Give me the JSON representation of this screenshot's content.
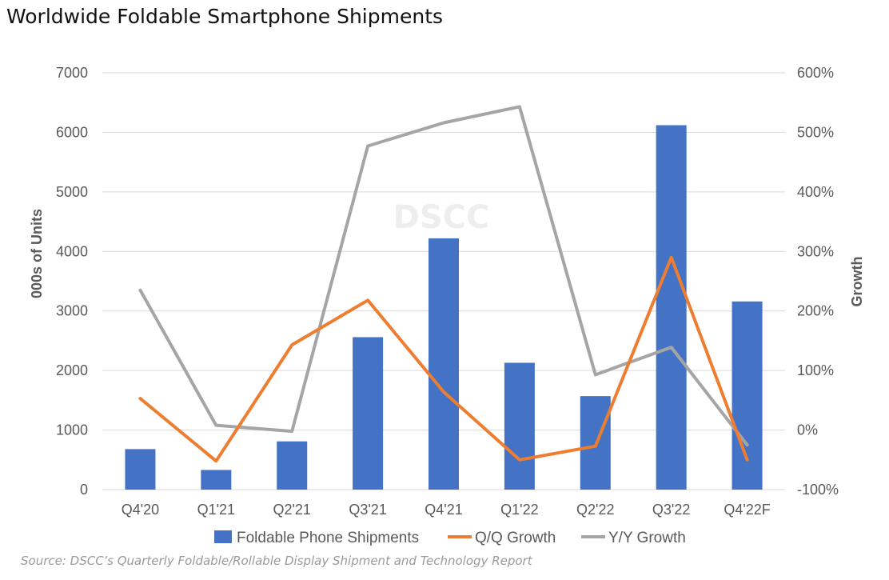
{
  "title": "Worldwide Foldable Smartphone Shipments",
  "source": "Source: DSCC’s Quarterly Foldable/Rollable Display Shipment and Technology Report",
  "watermark": "DSCC",
  "colors": {
    "bar": "#4472C4",
    "qq": "#ED7D31",
    "yy": "#A5A5A5",
    "grid": "#D9D9D9",
    "text": "#595959"
  },
  "chart_data": {
    "type": "bar",
    "categories": [
      "Q4'20",
      "Q1'21",
      "Q2'21",
      "Q3'21",
      "Q4'21",
      "Q1'22",
      "Q2'22",
      "Q3'22",
      "Q4'22F"
    ],
    "y_left": {
      "label": "000s of Units",
      "lim": [
        0,
        7000
      ],
      "ticks": [
        0,
        1000,
        2000,
        3000,
        4000,
        5000,
        6000,
        7000
      ],
      "tick_labels": [
        "0",
        "1000",
        "2000",
        "3000",
        "4000",
        "5000",
        "6000",
        "7000"
      ]
    },
    "y_right": {
      "label": "Growth",
      "lim": [
        -100,
        600
      ],
      "ticks": [
        -100,
        0,
        100,
        200,
        300,
        400,
        500,
        600
      ],
      "tick_labels": [
        "-100%",
        "0%",
        "100%",
        "200%",
        "300%",
        "400%",
        "500%",
        "600%"
      ]
    },
    "series": [
      {
        "name": "Foldable Phone Shipments",
        "type": "bar",
        "axis": "left",
        "values": [
          680,
          330,
          810,
          2560,
          4220,
          2130,
          1570,
          6120,
          3160
        ]
      },
      {
        "name": "Q/Q Growth",
        "type": "line",
        "axis": "right",
        "values": [
          53,
          -52,
          143,
          218,
          64,
          -50,
          -27,
          290,
          -50
        ]
      },
      {
        "name": "Y/Y Growth",
        "type": "line",
        "axis": "right",
        "values": [
          235,
          8,
          -2,
          477,
          516,
          543,
          93,
          139,
          -25
        ]
      }
    ],
    "grid": true,
    "legend": "bottom"
  }
}
